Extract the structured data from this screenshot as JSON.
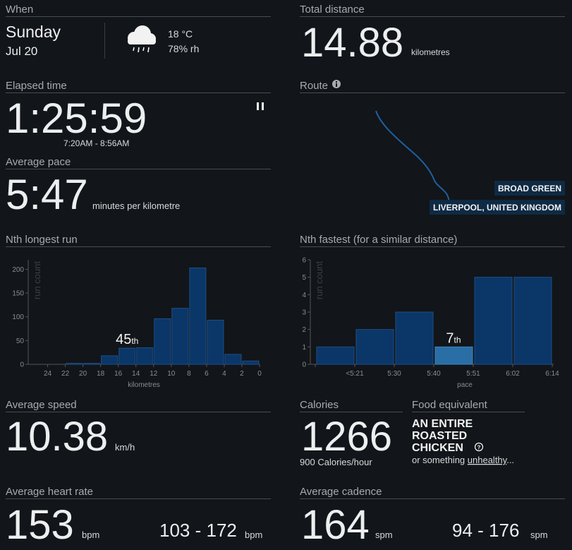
{
  "when": {
    "header": "When",
    "day": "Sunday",
    "date": "Jul 20",
    "temperature": "18 °C",
    "humidity": "78% rh"
  },
  "total_distance": {
    "header": "Total distance",
    "value": "14.88",
    "unit": "kilometres"
  },
  "elapsed_time": {
    "header": "Elapsed time",
    "value": "1:25:59",
    "range": "7:20AM - 8:56AM"
  },
  "route": {
    "header": "Route",
    "places": [
      "BROAD GREEN",
      "LIVERPOOL, UNITED KINGDOM"
    ]
  },
  "average_pace": {
    "header": "Average pace",
    "value": "5:47",
    "unit": "minutes per kilometre"
  },
  "longest_run": {
    "header": "Nth longest run",
    "rank": "45",
    "rank_suffix": "th",
    "chart": {
      "type": "histogram",
      "bins": [
        22,
        20,
        18,
        16,
        14,
        12,
        10,
        8,
        6,
        4,
        2,
        0
      ],
      "values": [
        2,
        2,
        18,
        34,
        35,
        96,
        118,
        203,
        93,
        21,
        7
      ],
      "rank_bin": 3,
      "color": "#0b3668",
      "xlabel": "kilometres",
      "ylabel": "run count",
      "xlim": [
        26.2,
        0
      ],
      "xticks": [
        24,
        22,
        20,
        18,
        16,
        14,
        12,
        10,
        8,
        6,
        4,
        2,
        0
      ],
      "ylim": [
        0,
        220
      ],
      "yticks": [
        0,
        50,
        100,
        150,
        200
      ]
    }
  },
  "fastest": {
    "header": "Nth fastest (for a similar distance)",
    "rank": "7",
    "rank_suffix": "th",
    "chart": {
      "type": "histogram",
      "bin_labels": [
        null,
        "<5:21",
        "5:30",
        "5:40",
        "5:51",
        "6:02",
        "6:14"
      ],
      "values": [
        1,
        2,
        3,
        1,
        5,
        5
      ],
      "rank_bin": 3,
      "color": "#0b3668",
      "highlight_color": "#2a6ea6",
      "xlabel": "pace",
      "ylabel": "run count",
      "ylim": [
        0,
        6
      ],
      "yticks": [
        0,
        1,
        2,
        3,
        4,
        5,
        6
      ]
    }
  },
  "average_speed": {
    "header": "Average speed",
    "value": "10.38",
    "unit": "km/h"
  },
  "calories": {
    "header": "Calories",
    "value": "1266",
    "rate": "900",
    "rate_unit": "Calories/hour"
  },
  "food": {
    "header": "Food equivalent",
    "lines": [
      "AN ENTIRE",
      "ROASTED",
      "CHICKEN"
    ],
    "note_prefix": "or something",
    "note_link": "unhealthy",
    "note_suffix": "..."
  },
  "heart_rate": {
    "header": "Average heart rate",
    "value": "153",
    "unit": "bpm",
    "range": "103 - 172",
    "range_unit": "bpm"
  },
  "cadence": {
    "header": "Average cadence",
    "value": "164",
    "unit": "spm",
    "range": "94 - 176",
    "range_unit": "spm"
  }
}
